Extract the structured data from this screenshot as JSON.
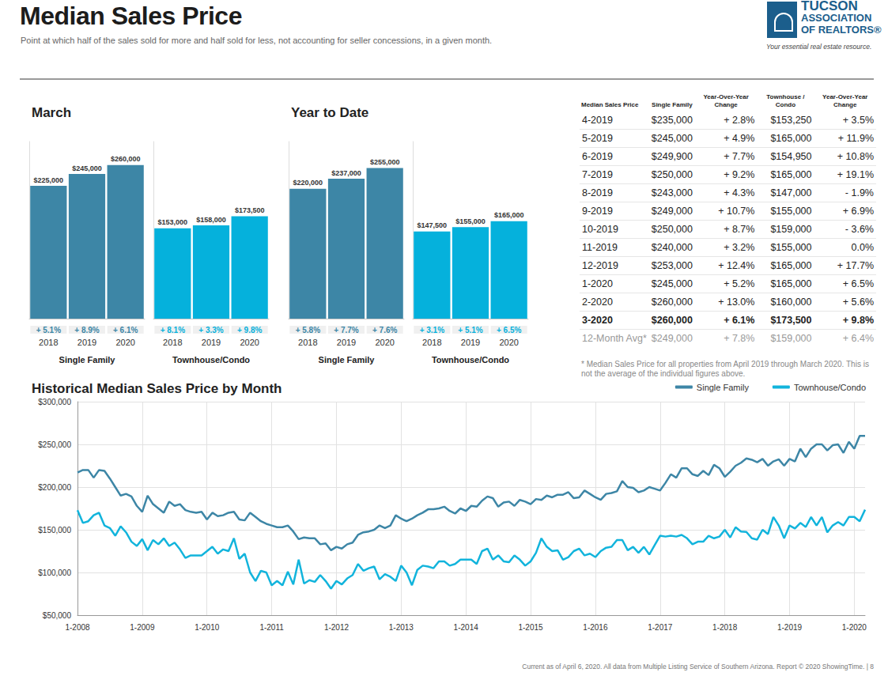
{
  "header": {
    "title": "Median Sales Price",
    "subtitle": "Point at which half of the sales sold for more and half sold for less, not accounting for seller concessions, in a given month.",
    "logo": {
      "lines": [
        "TUCSON",
        "ASSOCIATION",
        "OF REALTORS®"
      ],
      "tagline": "Your essential real estate resource."
    }
  },
  "chart_data": [
    {
      "type": "bar",
      "title": "March",
      "categories": [
        "2018",
        "2019",
        "2020"
      ],
      "series": [
        {
          "name": "Single Family",
          "color": "#3d86a6",
          "values": [
            225000,
            245000,
            260000
          ],
          "value_labels": [
            "$225,000",
            "$245,000",
            "$260,000"
          ],
          "changes": [
            "+ 5.1%",
            "+ 8.9%",
            "+ 6.1%"
          ]
        },
        {
          "name": "Townhouse/Condo",
          "color": "#05b1dc",
          "values": [
            153000,
            158000,
            173500
          ],
          "value_labels": [
            "$153,000",
            "$158,000",
            "$173,500"
          ],
          "changes": [
            "+ 8.1%",
            "+ 3.3%",
            "+ 9.8%"
          ]
        }
      ],
      "ylim": [
        0,
        300000
      ],
      "data_labels": true,
      "tick_labels": "x",
      "grid": false
    },
    {
      "type": "bar",
      "title": "Year to Date",
      "categories": [
        "2018",
        "2019",
        "2020"
      ],
      "series": [
        {
          "name": "Single Family",
          "color": "#3d86a6",
          "values": [
            220000,
            237000,
            255000
          ],
          "value_labels": [
            "$220,000",
            "$237,000",
            "$255,000"
          ],
          "changes": [
            "+ 5.8%",
            "+ 7.7%",
            "+ 7.6%"
          ]
        },
        {
          "name": "Townhouse/Condo",
          "color": "#05b1dc",
          "values": [
            147500,
            155000,
            165000
          ],
          "value_labels": [
            "$147,500",
            "$155,000",
            "$165,000"
          ],
          "changes": [
            "+ 3.1%",
            "+ 5.1%",
            "+ 6.5%"
          ]
        }
      ],
      "ylim": [
        0,
        300000
      ],
      "data_labels": true,
      "tick_labels": "x",
      "grid": false
    },
    {
      "type": "line",
      "title": "Historical Median Sales Price by Month",
      "x": [
        "1-2008",
        null,
        null,
        null,
        null,
        null,
        null,
        null,
        null,
        null,
        null,
        null,
        "1-2009",
        null,
        null,
        null,
        null,
        null,
        null,
        null,
        null,
        null,
        null,
        null,
        "1-2010",
        null,
        null,
        null,
        null,
        null,
        null,
        null,
        null,
        null,
        null,
        null,
        "1-2011",
        null,
        null,
        null,
        null,
        null,
        null,
        null,
        null,
        null,
        null,
        null,
        "1-2012",
        null,
        null,
        null,
        null,
        null,
        null,
        null,
        null,
        null,
        null,
        null,
        "1-2013",
        null,
        null,
        null,
        null,
        null,
        null,
        null,
        null,
        null,
        null,
        null,
        "1-2014",
        null,
        null,
        null,
        null,
        null,
        null,
        null,
        null,
        null,
        null,
        null,
        "1-2015",
        null,
        null,
        null,
        null,
        null,
        null,
        null,
        null,
        null,
        null,
        null,
        "1-2016",
        null,
        null,
        null,
        null,
        null,
        null,
        null,
        null,
        null,
        null,
        null,
        "1-2017",
        null,
        null,
        null,
        null,
        null,
        null,
        null,
        null,
        null,
        null,
        null,
        "1-2018",
        null,
        null,
        null,
        null,
        null,
        null,
        null,
        null,
        null,
        null,
        null,
        "1-2019",
        null,
        null,
        null,
        null,
        null,
        null,
        null,
        null,
        null,
        null,
        null,
        "1-2020",
        null,
        null
      ],
      "series": [
        {
          "name": "Single Family",
          "color": "#3d86a6",
          "values": [
            217000,
            220000,
            220000,
            211000,
            220000,
            219000,
            210000,
            200000,
            190000,
            192000,
            189000,
            178000,
            171000,
            190000,
            180000,
            175000,
            170000,
            183000,
            178000,
            180000,
            173000,
            171000,
            170000,
            171000,
            162000,
            170000,
            166000,
            167000,
            170000,
            171000,
            162000,
            161000,
            170000,
            165000,
            160000,
            157000,
            155000,
            153000,
            153000,
            155000,
            148000,
            139000,
            141000,
            140000,
            140000,
            133000,
            134000,
            126000,
            130000,
            128000,
            133000,
            135000,
            144000,
            147000,
            148000,
            150000,
            155000,
            152000,
            155000,
            167000,
            163000,
            160000,
            163000,
            167000,
            170000,
            174000,
            174000,
            175000,
            177000,
            172000,
            169000,
            175000,
            172000,
            178000,
            177000,
            184000,
            189000,
            187000,
            177000,
            182000,
            183000,
            178000,
            185000,
            183000,
            180000,
            186000,
            185000,
            190000,
            188000,
            191000,
            191000,
            194000,
            187000,
            188000,
            196000,
            192000,
            188000,
            185000,
            192000,
            193000,
            195000,
            207000,
            200000,
            199000,
            194000,
            196000,
            200000,
            198000,
            196000,
            205000,
            215000,
            211000,
            222000,
            222000,
            215000,
            213000,
            219000,
            214000,
            226000,
            222000,
            212000,
            218000,
            225000,
            228500,
            233500,
            232000,
            229000,
            233000,
            225000,
            230000,
            232500,
            225000,
            233000,
            230000,
            245000,
            235000,
            245000,
            249900,
            250000,
            243000,
            249000,
            250000,
            240000,
            253000,
            245000,
            260000,
            260000
          ]
        },
        {
          "name": "Townhouse/Condo",
          "color": "#12b4dc",
          "values": [
            173000,
            158000,
            160000,
            167000,
            170000,
            155000,
            152000,
            143000,
            154000,
            147000,
            136000,
            131000,
            139000,
            126000,
            138000,
            133000,
            140000,
            131000,
            135000,
            127000,
            117000,
            120000,
            120000,
            120000,
            125000,
            130000,
            122000,
            127000,
            125000,
            140000,
            116000,
            122000,
            100000,
            90000,
            102000,
            100000,
            85000,
            90000,
            85000,
            101000,
            86000,
            115000,
            87000,
            91000,
            89000,
            97000,
            90000,
            81000,
            90000,
            86000,
            93000,
            97000,
            110000,
            102000,
            105000,
            107000,
            92000,
            98000,
            95000,
            90000,
            108000,
            100000,
            85000,
            103000,
            108000,
            107000,
            105000,
            113000,
            113000,
            108000,
            110000,
            115000,
            115000,
            115000,
            110000,
            125000,
            128000,
            115000,
            120000,
            113000,
            112000,
            120000,
            115000,
            108000,
            113000,
            123000,
            140000,
            130000,
            125000,
            126000,
            115000,
            118000,
            125000,
            128000,
            120000,
            122000,
            118000,
            125000,
            129000,
            130000,
            138000,
            138000,
            126000,
            130000,
            123000,
            130000,
            121000,
            132000,
            143000,
            142000,
            143000,
            142000,
            144000,
            140000,
            133000,
            136000,
            136000,
            143000,
            140000,
            142000,
            150000,
            141000,
            153000,
            148000,
            147500,
            140000,
            138500,
            150000,
            145000,
            165000,
            155000,
            140000,
            155000,
            151500,
            158000,
            153250,
            165000,
            154950,
            165000,
            147000,
            155000,
            159000,
            155000,
            165000,
            165000,
            160000,
            173500
          ]
        }
      ],
      "ylim": [
        50000,
        300000
      ],
      "yticks": [
        {
          "value": 50000,
          "label": "$50,000"
        },
        {
          "value": 100000,
          "label": "$100,000"
        },
        {
          "value": 150000,
          "label": "$150,000"
        },
        {
          "value": 200000,
          "label": "$200,000"
        },
        {
          "value": 250000,
          "label": "$250,000"
        },
        {
          "value": 300000,
          "label": "$300,000"
        }
      ],
      "grid": true,
      "legend": "upper right"
    }
  ],
  "table": {
    "columns": [
      "Median Sales Price",
      "Single Family",
      "Year-Over-Year Change",
      "Townhouse / Condo",
      "Year-Over-Year Change"
    ],
    "rows": [
      [
        "4-2019",
        "$235,000",
        "+ 2.8%",
        "$153,250",
        "+ 3.5%"
      ],
      [
        "5-2019",
        "$245,000",
        "+ 4.9%",
        "$165,000",
        "+ 11.9%"
      ],
      [
        "6-2019",
        "$249,900",
        "+ 7.7%",
        "$154,950",
        "+ 10.8%"
      ],
      [
        "7-2019",
        "$250,000",
        "+ 9.2%",
        "$165,000",
        "+ 19.1%"
      ],
      [
        "8-2019",
        "$243,000",
        "+ 4.3%",
        "$147,000",
        "- 1.9%"
      ],
      [
        "9-2019",
        "$249,000",
        "+ 10.7%",
        "$155,000",
        "+ 6.9%"
      ],
      [
        "10-2019",
        "$250,000",
        "+ 8.7%",
        "$159,000",
        "- 3.6%"
      ],
      [
        "11-2019",
        "$240,000",
        "+ 3.2%",
        "$155,000",
        "0.0%"
      ],
      [
        "12-2019",
        "$253,000",
        "+ 12.4%",
        "$165,000",
        "+ 17.7%"
      ],
      [
        "1-2020",
        "$245,000",
        "+ 5.2%",
        "$165,000",
        "+ 6.5%"
      ],
      [
        "2-2020",
        "$260,000",
        "+ 13.0%",
        "$160,000",
        "+ 5.6%"
      ],
      [
        "3-2020",
        "$260,000",
        "+ 6.1%",
        "$173,500",
        "+ 9.8%"
      ]
    ],
    "summary": [
      "12-Month Avg*",
      "$249,000",
      "+ 7.8%",
      "$159,000",
      "+ 6.4%"
    ],
    "footnote": "* Median Sales Price for all properties from April 2019 through March 2020. This is not the average of the individual figures above."
  },
  "footer": "Current as of April 6, 2020. All data from Multiple Listing Service of Southern Arizona. Report © 2020 ShowingTime. | 8"
}
